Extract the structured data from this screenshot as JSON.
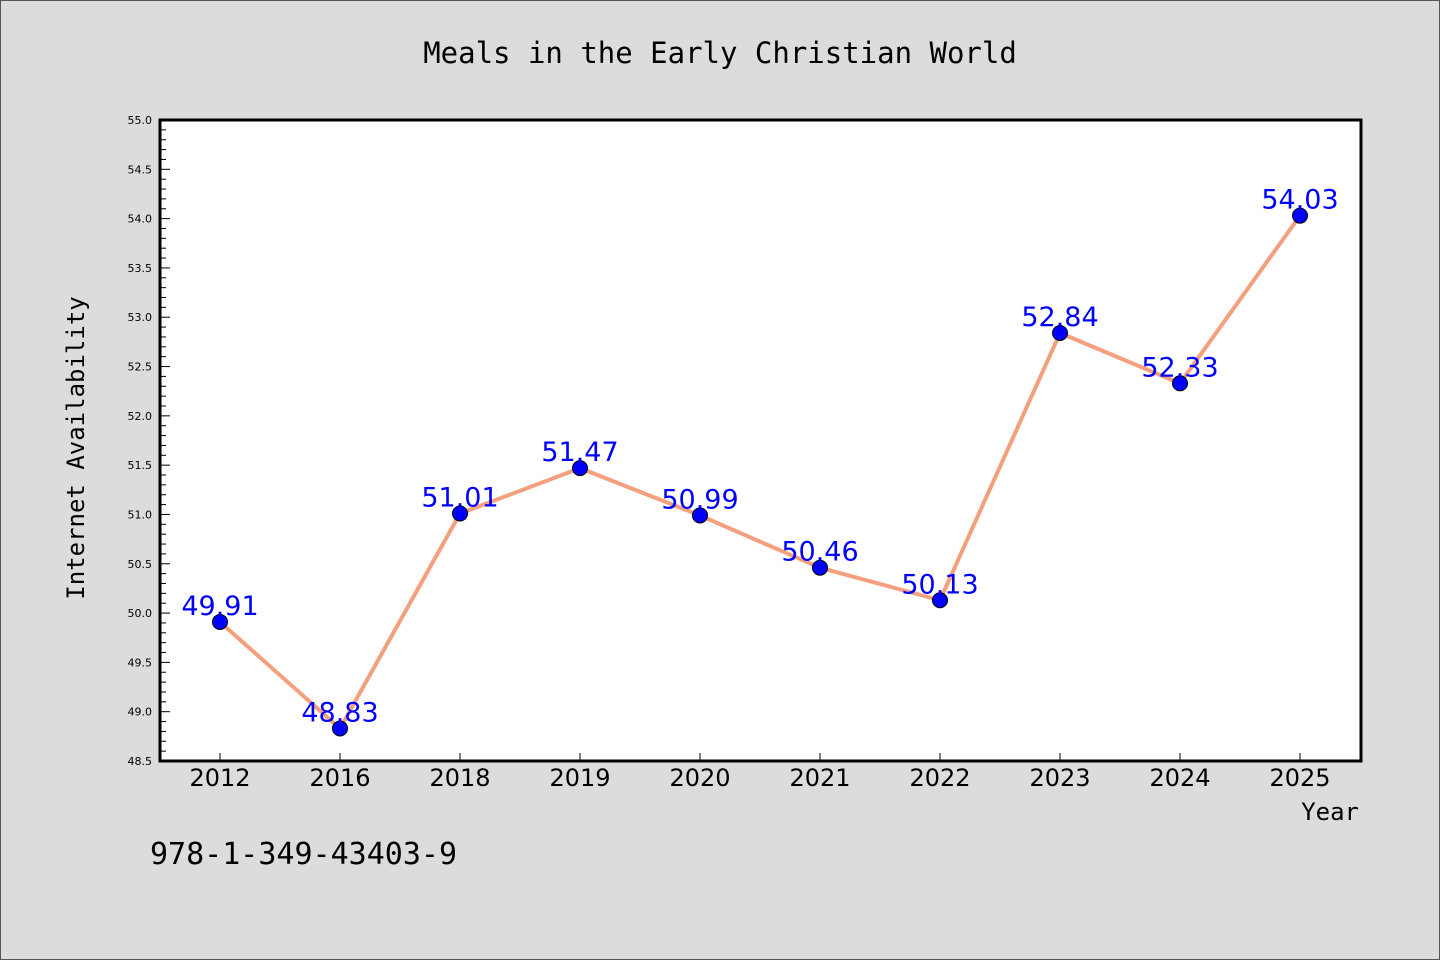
{
  "chart_data": {
    "type": "line",
    "title": "Meals in the Early Christian World",
    "xlabel": "Year",
    "ylabel": "Internet Availability",
    "categories": [
      "2012",
      "2016",
      "2018",
      "2019",
      "2020",
      "2021",
      "2022",
      "2023",
      "2024",
      "2025"
    ],
    "series": [
      {
        "values": [
          49.91,
          48.83,
          51.01,
          51.47,
          50.99,
          50.46,
          50.13,
          52.84,
          52.33,
          54.03
        ],
        "labels": [
          "49.91",
          "48.83",
          "51.01",
          "51.47",
          "50.99",
          "50.46",
          "50.13",
          "52.84",
          "52.33",
          "54.03"
        ],
        "line_color": "#f4a07e",
        "marker_color": "#0000ff",
        "label_color": "#0000ff"
      }
    ],
    "ylim": [
      48.5,
      55.0
    ],
    "yticks": [
      "48.5",
      "49.0",
      "49.5",
      "50.0",
      "50.5",
      "51.0",
      "51.5",
      "52.0",
      "52.5",
      "53.0",
      "53.5",
      "54.0",
      "54.5",
      "55.0"
    ],
    "y_minor_step": 0.1,
    "grid": false,
    "legend": "none",
    "background_color": "#dcdcdc",
    "plot_background_color": "#ffffff"
  },
  "footer": {
    "isbn": "978-1-349-43403-9"
  }
}
